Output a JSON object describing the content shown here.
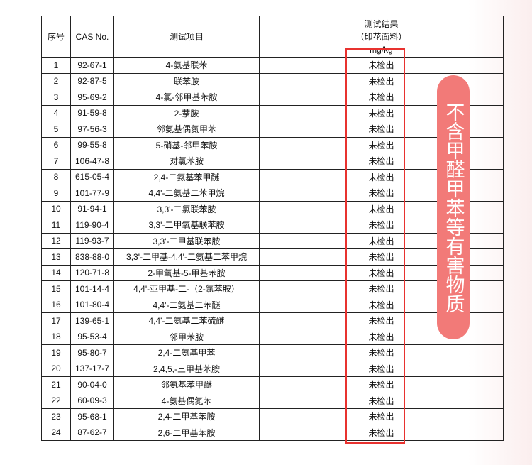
{
  "headers": {
    "no": "序号",
    "cas": "CAS No.",
    "item": "测试项目",
    "result_l1": "测试结果",
    "result_l2": "（印花面料）",
    "result_l3": "mg/kg"
  },
  "rows": [
    [
      "1",
      "92-67-1",
      "4-氨基联苯",
      "未检出"
    ],
    [
      "2",
      "92-87-5",
      "联苯胺",
      "未检出"
    ],
    [
      "3",
      "95-69-2",
      "4-氯-邻甲基苯胺",
      "未检出"
    ],
    [
      "4",
      "91-59-8",
      "2-萘胺",
      "未检出"
    ],
    [
      "5",
      "97-56-3",
      "邻氨基偶氮甲苯",
      "未检出"
    ],
    [
      "6",
      "99-55-8",
      "5-硝基-邻甲苯胺",
      "未检出"
    ],
    [
      "7",
      "106-47-8",
      "对氯苯胺",
      "未检出"
    ],
    [
      "8",
      "615-05-4",
      "2,4-二氨基苯甲醚",
      "未检出"
    ],
    [
      "9",
      "101-77-9",
      "4,4'-二氨基二苯甲烷",
      "未检出"
    ],
    [
      "10",
      "91-94-1",
      "3,3'-二氯联苯胺",
      "未检出"
    ],
    [
      "11",
      "119-90-4",
      "3,3'-二甲氧基联苯胺",
      "未检出"
    ],
    [
      "12",
      "119-93-7",
      "3,3'-二甲基联苯胺",
      "未检出"
    ],
    [
      "13",
      "838-88-0",
      "3,3'-二甲基-4,4'-二氨基二苯甲烷",
      "未检出"
    ],
    [
      "14",
      "120-71-8",
      "2-甲氧基-5-甲基苯胺",
      "未检出"
    ],
    [
      "15",
      "101-14-4",
      "4,4'-亚甲基-二-（2-氯苯胺）",
      "未检出"
    ],
    [
      "16",
      "101-80-4",
      "4,4'-二氨基二苯醚",
      "未检出"
    ],
    [
      "17",
      "139-65-1",
      "4,4'-二氨基二苯硫醚",
      "未检出"
    ],
    [
      "18",
      "95-53-4",
      "邻甲苯胺",
      "未检出"
    ],
    [
      "19",
      "95-80-7",
      "2,4-二氨基甲苯",
      "未检出"
    ],
    [
      "20",
      "137-17-7",
      "2,4,5,-三甲基苯胺",
      "未检出"
    ],
    [
      "21",
      "90-04-0",
      "邻氨基苯甲醚",
      "未检出"
    ],
    [
      "22",
      "60-09-3",
      "4-氨基偶氮苯",
      "未检出"
    ],
    [
      "23",
      "95-68-1",
      "2,4-二甲基苯胺",
      "未检出"
    ],
    [
      "24",
      "87-62-7",
      "2,6-二甲基苯胺",
      "未检出"
    ]
  ],
  "badge": "不含甲醛甲苯等有害物质",
  "colors": {
    "highlight": "#e8322f",
    "badge": "#f27a78"
  }
}
